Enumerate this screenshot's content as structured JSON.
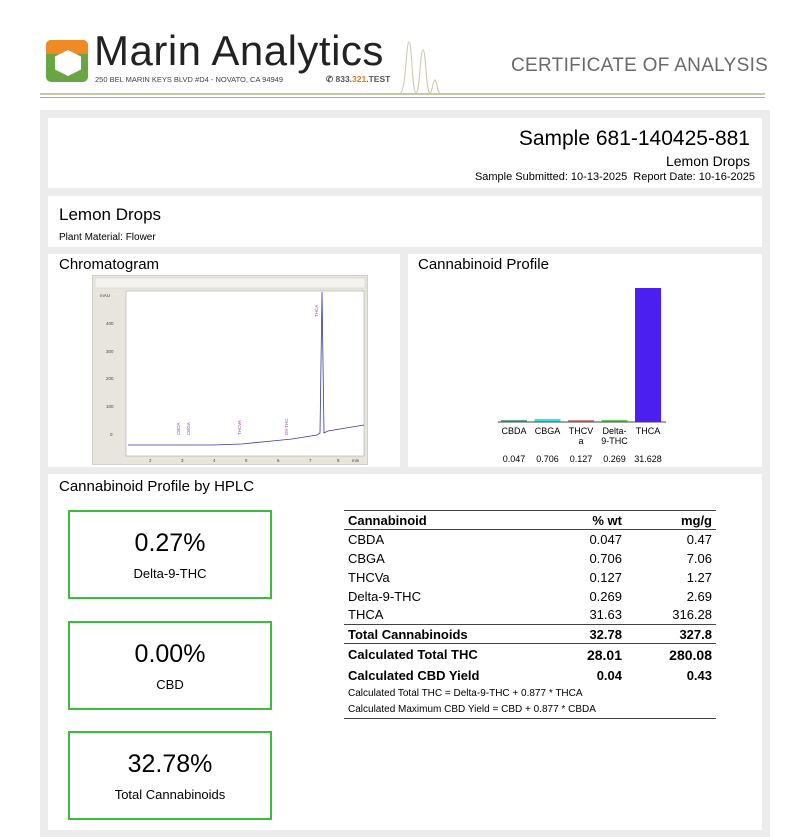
{
  "header": {
    "brand": "Marin Analytics",
    "address": "250 BEL MARIN KEYS BLVD #D4 - NOVATO, CA 94949",
    "phone_a": "833.",
    "phone_b": "321",
    "phone_c": ".TEST",
    "doc_title": "CERTIFICATE OF ANALYSIS"
  },
  "sample": {
    "id": "Sample 681-140425-881",
    "name": "Lemon Drops",
    "dates": "Sample Submitted: 10-13-2025  Report Date: 10-16-2025"
  },
  "product": {
    "name": "Lemon Drops",
    "material": "Plant Material: Flower"
  },
  "chromatogram": {
    "title": "Chromatogram",
    "yticks": [
      "400",
      "300",
      "200",
      "100",
      "0"
    ],
    "xticks": [
      "2",
      "3",
      "4",
      "5",
      "6",
      "7",
      "8"
    ],
    "x_unit": "min",
    "y_unit": "mAU",
    "peaks": [
      "CBDA",
      "CBGA",
      "THCVA",
      "D9-THC",
      "THCA"
    ]
  },
  "profile": {
    "title": "Cannabinoid Profile"
  },
  "chart_data": {
    "type": "bar",
    "categories": [
      "CBDA",
      "CBGA",
      "THCVa",
      "Delta-9-THC",
      "THCA"
    ],
    "tick_labels": [
      "CBDA",
      "CBGA",
      "THCV a",
      "Delta- 9-THC",
      "THCA"
    ],
    "values": [
      0.047,
      0.706,
      0.127,
      0.269,
      31.628
    ],
    "value_labels": [
      "0.047",
      "0.706",
      "0.127",
      "0.269",
      "31.628"
    ],
    "colors": [
      "#5fa89a",
      "#22e8f0",
      "#c98a86",
      "#66cc55",
      "#4a1ff0"
    ]
  },
  "hplc": {
    "title": "Cannabinoid Profile by HPLC",
    "summary": [
      {
        "value": "0.27%",
        "label": "Delta-9-THC"
      },
      {
        "value": "0.00%",
        "label": "CBD"
      },
      {
        "value": "32.78%",
        "label": "Total Cannabinoids"
      }
    ],
    "headers": [
      "Cannabinoid",
      "% wt",
      "mg/g"
    ],
    "rows": [
      [
        "CBDA",
        "0.047",
        "0.47"
      ],
      [
        "CBGA",
        "0.706",
        "7.06"
      ],
      [
        "THCVa",
        "0.127",
        "1.27"
      ],
      [
        "Delta-9-THC",
        "0.269",
        "2.69"
      ],
      [
        "THCA",
        "31.63",
        "316.28"
      ]
    ],
    "total": [
      "Total Cannabinoids",
      "32.78",
      "327.8"
    ],
    "total_thc": [
      "Calculated Total THC",
      "28.01",
      "280.08"
    ],
    "cbd_yield": [
      "Calculated CBD Yield",
      "0.04",
      "0.43"
    ],
    "notes": [
      "Calculated Total THC = Delta-9-THC + 0.877 * THCA",
      "Calculated Maximum CBD Yield = CBD + 0.877 * CBDA"
    ]
  },
  "colors": {
    "accent_green": "#3dbb3d",
    "logo_orange": "#f08a24",
    "logo_green": "#6aa544"
  }
}
